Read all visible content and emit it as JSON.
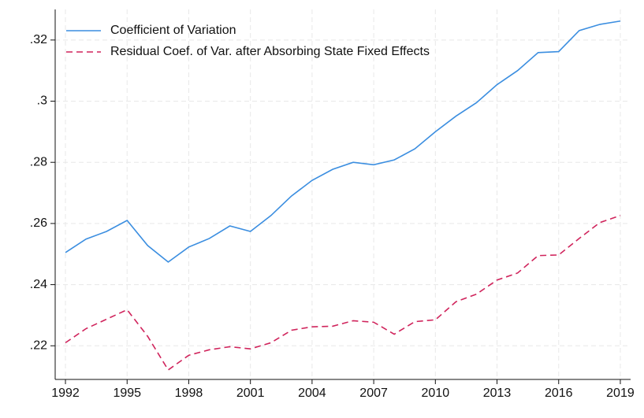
{
  "chart_data": {
    "type": "line",
    "x": [
      1992,
      1993,
      1994,
      1995,
      1996,
      1997,
      1998,
      1999,
      2000,
      2001,
      2002,
      2003,
      2004,
      2005,
      2006,
      2007,
      2008,
      2009,
      2010,
      2011,
      2012,
      2013,
      2014,
      2015,
      2016,
      2017,
      2018,
      2019
    ],
    "series": [
      {
        "name": "Coefficient of Variation",
        "color": "#3b8ee0",
        "dash": "solid",
        "values": [
          0.2505,
          0.2549,
          0.2574,
          0.261,
          0.2528,
          0.2474,
          0.2523,
          0.2551,
          0.2592,
          0.2574,
          0.2626,
          0.269,
          0.2741,
          0.2777,
          0.28,
          0.2792,
          0.2808,
          0.2844,
          0.29,
          0.2951,
          0.2995,
          0.3054,
          0.31,
          0.3159,
          0.3162,
          0.3231,
          0.3251,
          0.3262
        ]
      },
      {
        "name": "Residual Coef. of Var. after Absorbing State Fixed Effects",
        "color": "#d0245c",
        "dash": "dashed",
        "values": [
          0.221,
          0.2256,
          0.2287,
          0.2318,
          0.2231,
          0.2121,
          0.2169,
          0.2187,
          0.2197,
          0.219,
          0.221,
          0.2251,
          0.2262,
          0.2264,
          0.2282,
          0.2277,
          0.2238,
          0.2279,
          0.2285,
          0.2344,
          0.2369,
          0.2415,
          0.2438,
          0.2495,
          0.2497,
          0.2551,
          0.2603,
          0.2626
        ]
      }
    ],
    "xlim": [
      1991.5,
      2019.5
    ],
    "xticks": [
      1992,
      1995,
      1998,
      2001,
      2004,
      2007,
      2010,
      2013,
      2016,
      2019
    ],
    "ylim": [
      0.209,
      0.33
    ],
    "yticks": [
      {
        "value": 0.22,
        "label": ".22"
      },
      {
        "value": 0.24,
        "label": ".24"
      },
      {
        "value": 0.26,
        "label": ".26"
      },
      {
        "value": 0.28,
        "label": ".28"
      },
      {
        "value": 0.3,
        "label": ".3"
      },
      {
        "value": 0.32,
        "label": ".32"
      }
    ],
    "grid": true,
    "legend": "top-left"
  }
}
